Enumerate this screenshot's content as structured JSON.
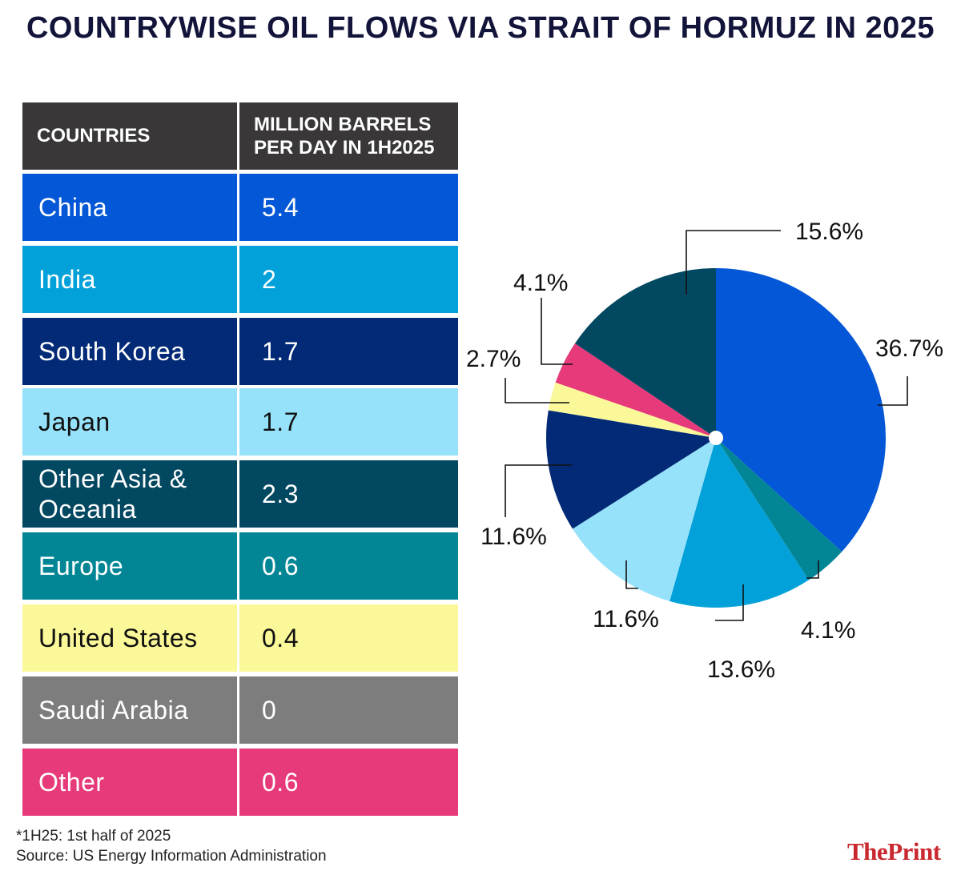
{
  "title": "COUNTRYWISE OIL FLOWS VIA STRAIT OF HORMUZ IN 2025",
  "table": {
    "header": {
      "col1": "COUNTRIES",
      "col2_line1": "MILLION BARRELS",
      "col2_line2": "PER DAY IN 1H2025"
    },
    "rows": [
      {
        "name": "China",
        "value": "5.4",
        "color": "#0457d6",
        "text_color": "#ffffff"
      },
      {
        "name": "India",
        "value": "2",
        "color": "#03a1d9",
        "text_color": "#ffffff"
      },
      {
        "name": "South Korea",
        "value": "1.7",
        "color": "#022a76",
        "text_color": "#ffffff"
      },
      {
        "name": "Japan",
        "value": "1.7",
        "color": "#96e2fb",
        "text_color": "#111111"
      },
      {
        "name_line1": "Other Asia &",
        "name_line2": "Oceania",
        "value": "2.3",
        "color": "#034861",
        "text_color": "#ffffff"
      },
      {
        "name": "Europe",
        "value": "0.6",
        "color": "#028696",
        "text_color": "#ffffff"
      },
      {
        "name": "United States",
        "value": "0.4",
        "color": "#fbf89a",
        "text_color": "#111111"
      },
      {
        "name": "Saudi Arabia",
        "value": "0",
        "color": "#7d7d7d",
        "text_color": "#ffffff"
      },
      {
        "name": "Other",
        "value": "0.6",
        "color": "#e63a7a",
        "text_color": "#ffffff"
      }
    ]
  },
  "chart_data": {
    "type": "pie",
    "slices": [
      {
        "label": "36.7%",
        "value": 36.7,
        "color": "#0457d6"
      },
      {
        "label": "4.1%",
        "value": 4.1,
        "color": "#028696"
      },
      {
        "label": "13.6%",
        "value": 13.6,
        "color": "#03a1d9"
      },
      {
        "label": "11.6%",
        "value": 11.6,
        "color": "#96e2fb"
      },
      {
        "label": "11.6%",
        "value": 11.6,
        "color": "#022a76"
      },
      {
        "label": "2.7%",
        "value": 2.7,
        "color": "#fbf89a"
      },
      {
        "label": "4.1%",
        "value": 4.1,
        "color": "#e63a7a"
      },
      {
        "label": "15.6%",
        "value": 15.6,
        "color": "#034861"
      }
    ],
    "start": "12 o'clock",
    "direction": "clockwise"
  },
  "footnote": "*1H25: 1st half of 2025",
  "source": "Source: US Energy Information Administration",
  "brand": "ThePrint"
}
